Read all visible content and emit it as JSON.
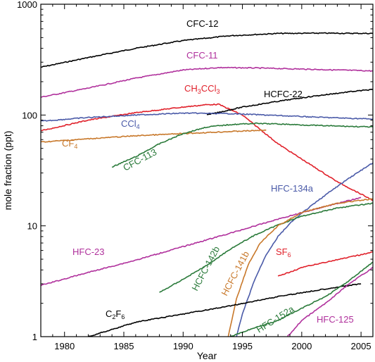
{
  "chart_data": {
    "type": "line",
    "title": "",
    "xlabel": "Year",
    "ylabel": "mole fraction (ppt)",
    "xlim": [
      1978,
      2006
    ],
    "ylim": [
      1,
      1000
    ],
    "yscale": "log",
    "grid": false,
    "x_ticks": [
      "1980",
      "1985",
      "1990",
      "1995",
      "2000",
      "2005"
    ],
    "x_tick_values": [
      1980,
      1985,
      1990,
      1995,
      2000,
      2005
    ],
    "y_ticks": [
      "1",
      "10",
      "100",
      "1000"
    ],
    "y_tick_values": [
      1,
      10,
      100,
      1000
    ],
    "series": [
      {
        "key": "cfc12",
        "name": "CFC-12",
        "color": "#000000",
        "x": [
          1978,
          1982,
          1986,
          1990,
          1994,
          1998,
          2002,
          2006
        ],
        "y": [
          270,
          330,
          400,
          470,
          520,
          545,
          548,
          545
        ]
      },
      {
        "key": "cfc11",
        "name": "CFC-11",
        "color": "#b0309c",
        "x": [
          1978,
          1982,
          1986,
          1990,
          1993,
          1996,
          2000,
          2006
        ],
        "y": [
          145,
          175,
          215,
          255,
          268,
          266,
          260,
          250
        ]
      },
      {
        "key": "ch3ccl3",
        "name": "CH3CCl3",
        "color": "#e0202a",
        "x": [
          1978,
          1982,
          1986,
          1990,
          1992,
          1993,
          1995,
          1998,
          2000,
          2003,
          2006
        ],
        "y": [
          72,
          90,
          105,
          118,
          124,
          125,
          100,
          55,
          40,
          25,
          17
        ]
      },
      {
        "key": "hcfc22",
        "name": "HCFC-22",
        "color": "#000000",
        "x": [
          1992,
          1995,
          1998,
          2001,
          2004,
          2006
        ],
        "y": [
          100,
          118,
          133,
          148,
          162,
          170
        ]
      },
      {
        "key": "ccl4",
        "name": "CCl4",
        "color": "#4a5aa8",
        "x": [
          1978,
          1982,
          1986,
          1990,
          1994,
          1998,
          2002,
          2006
        ],
        "y": [
          88,
          95,
          100,
          104,
          103,
          99,
          95,
          92
        ]
      },
      {
        "key": "cf4",
        "name": "CF4",
        "color": "#c8782a",
        "x": [
          1978,
          1982,
          1986,
          1990,
          1994,
          1997
        ],
        "y": [
          57,
          61,
          65,
          68,
          71,
          73
        ]
      },
      {
        "key": "cfc113",
        "name": "CFC-113",
        "color": "#2a7a3a",
        "x": [
          1984,
          1986,
          1988,
          1990,
          1992,
          1994,
          1996,
          1998,
          2002,
          2006
        ],
        "y": [
          34,
          42,
          55,
          68,
          78,
          82,
          84,
          83,
          80,
          78
        ]
      },
      {
        "key": "hfc134a",
        "name": "HFC-134a",
        "color": "#4a5aa8",
        "x": [
          1994.5,
          1995,
          1996,
          1997,
          1998,
          1999,
          2000,
          2002,
          2004,
          2006
        ],
        "y": [
          1,
          1.6,
          3.2,
          5.5,
          8,
          10.5,
          13,
          19,
          27,
          37
        ]
      },
      {
        "key": "hfc23",
        "name": "HFC-23",
        "color": "#b0309c",
        "x": [
          1978,
          1982,
          1986,
          1990,
          1994,
          1998,
          2002,
          2005
        ],
        "y": [
          2.9,
          3.8,
          4.9,
          6.5,
          8.6,
          11.5,
          15,
          18
        ]
      },
      {
        "key": "hcfc142b",
        "name": "HCFC-142b",
        "color": "#2a7a3a",
        "x": [
          1988,
          1990,
          1992,
          1994,
          1996,
          1998,
          2000,
          2003,
          2006
        ],
        "y": [
          2.5,
          3.3,
          4.4,
          6.2,
          8.2,
          10.2,
          12.2,
          14.5,
          16
        ]
      },
      {
        "key": "hcfc141b",
        "name": "HCFC-141b",
        "color": "#c8782a",
        "x": [
          1993.8,
          1994.5,
          1995.5,
          1996.5,
          1998,
          2000,
          2003,
          2006
        ],
        "y": [
          1,
          2.2,
          4.5,
          7,
          10,
          13.2,
          16,
          17.5
        ]
      },
      {
        "key": "sf6",
        "name": "SF6",
        "color": "#e0202a",
        "x": [
          1998,
          2000,
          2002,
          2004,
          2006
        ],
        "y": [
          3.5,
          4.2,
          4.7,
          5.2,
          5.8
        ]
      },
      {
        "key": "c2f6",
        "name": "C2F6",
        "color": "#000000",
        "x": [
          1982,
          1986,
          1990,
          1994,
          1998,
          2002,
          2005
        ],
        "y": [
          1,
          1.35,
          1.6,
          1.9,
          2.3,
          2.7,
          3
        ]
      },
      {
        "key": "hfc152a",
        "name": "HFC-152a",
        "color": "#2a7a3a",
        "x": [
          1994,
          1996,
          1998,
          2000,
          2002,
          2004,
          2006
        ],
        "y": [
          1,
          1.2,
          1.4,
          1.8,
          2.3,
          3.2,
          4.7
        ]
      },
      {
        "key": "hfc125",
        "name": "HFC-125",
        "color": "#b0309c",
        "x": [
          1998.8,
          2000,
          2002,
          2004,
          2006
        ],
        "y": [
          1,
          1.4,
          2.0,
          3.0,
          4.2
        ]
      }
    ]
  }
}
